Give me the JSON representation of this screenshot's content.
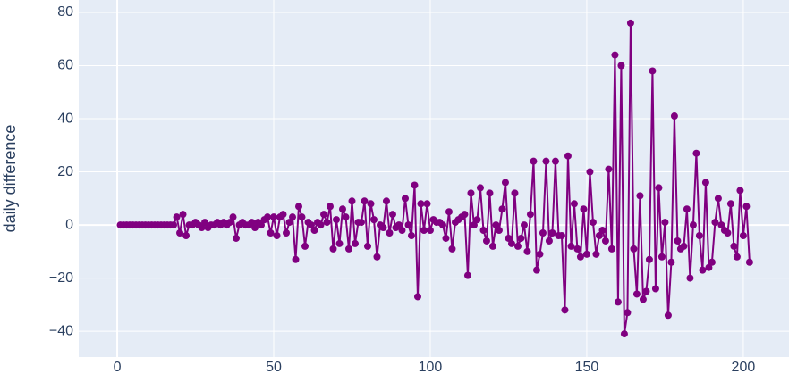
{
  "chart_data": {
    "type": "line",
    "y_label": "daily difference",
    "x": [
      1,
      2,
      3,
      4,
      5,
      6,
      7,
      8,
      9,
      10,
      11,
      12,
      13,
      14,
      15,
      16,
      17,
      18,
      19,
      20,
      21,
      22,
      23,
      24,
      25,
      26,
      27,
      28,
      29,
      30,
      31,
      32,
      33,
      34,
      35,
      36,
      37,
      38,
      39,
      40,
      41,
      42,
      43,
      44,
      45,
      46,
      47,
      48,
      49,
      50,
      51,
      52,
      53,
      54,
      55,
      56,
      57,
      58,
      59,
      60,
      61,
      62,
      63,
      64,
      65,
      66,
      67,
      68,
      69,
      70,
      71,
      72,
      73,
      74,
      75,
      76,
      77,
      78,
      79,
      80,
      81,
      82,
      83,
      84,
      85,
      86,
      87,
      88,
      89,
      90,
      91,
      92,
      93,
      94,
      95,
      96,
      97,
      98,
      99,
      100,
      101,
      102,
      103,
      104,
      105,
      106,
      107,
      108,
      109,
      110,
      111,
      112,
      113,
      114,
      115,
      116,
      117,
      118,
      119,
      120,
      121,
      122,
      123,
      124,
      125,
      126,
      127,
      128,
      129,
      130,
      131,
      132,
      133,
      134,
      135,
      136,
      137,
      138,
      139,
      140,
      141,
      142,
      143,
      144,
      145,
      146,
      147,
      148,
      149,
      150,
      151,
      152,
      153,
      154,
      155,
      156,
      157,
      158,
      159,
      160,
      161,
      162,
      163,
      164,
      165,
      166,
      167,
      168,
      169,
      170,
      171,
      172,
      173,
      174,
      175,
      176,
      177,
      178,
      179,
      180,
      181,
      182,
      183,
      184,
      185,
      186,
      187,
      188,
      189,
      190,
      191,
      192,
      193,
      194,
      195,
      196,
      197,
      198,
      199,
      200,
      201,
      202
    ],
    "series": [
      {
        "color": "#800080",
        "values": [
          0,
          0,
          0,
          0,
          0,
          0,
          0,
          0,
          0,
          0,
          0,
          0,
          0,
          0,
          0,
          0,
          0,
          0,
          3,
          -3,
          4,
          -4,
          0,
          0,
          1,
          0,
          -1,
          1,
          -1,
          0,
          0,
          1,
          0,
          1,
          0,
          1,
          3,
          -5,
          0,
          1,
          0,
          0,
          1,
          -1,
          1,
          0,
          2,
          3,
          -3,
          3,
          -4,
          3,
          4,
          -3,
          1,
          3,
          -13,
          7,
          3,
          -8,
          1,
          0,
          -2,
          1,
          0,
          4,
          1,
          7,
          -9,
          2,
          -7,
          6,
          3,
          -9,
          9,
          -7,
          1,
          1,
          9,
          -8,
          8,
          2,
          -12,
          0,
          -1,
          9,
          -3,
          4,
          -1,
          0,
          -2,
          10,
          0,
          -4,
          15,
          -27,
          8,
          -2,
          8,
          -2,
          2,
          1,
          1,
          0,
          -5,
          5,
          -9,
          1,
          2,
          3,
          4,
          -19,
          12,
          0,
          2,
          14,
          -2,
          -6,
          12,
          -8,
          0,
          -2,
          6,
          16,
          -5,
          -7,
          12,
          -8,
          -5,
          0,
          -10,
          4,
          24,
          -17,
          -11,
          -3,
          24,
          -6,
          -3,
          24,
          -4,
          -4,
          -32,
          26,
          -8,
          8,
          -9,
          -12,
          6,
          -11,
          20,
          1,
          -11,
          -4,
          -2,
          -6,
          21,
          -9,
          64,
          -29,
          60,
          -41,
          -33,
          76,
          -9,
          -26,
          11,
          -28,
          -25,
          -13,
          58,
          -24,
          14,
          -12,
          1,
          -34,
          -14,
          41,
          -6,
          -9,
          -8,
          6,
          -20,
          0,
          27,
          -4,
          -17,
          16,
          -16,
          -14,
          1,
          10,
          0,
          -2,
          -3,
          8,
          -8,
          -12,
          13,
          -4,
          7,
          -14
        ]
      }
    ],
    "xlim": [
      -12.3,
      214.6
    ],
    "ylim": [
      -49.7,
      84.7
    ],
    "xticks": [
      0,
      50,
      100,
      150,
      200
    ],
    "yticks": [
      {
        "value": -40,
        "label": "−40"
      },
      {
        "value": -20,
        "label": "−20"
      },
      0,
      20,
      40,
      60,
      80
    ],
    "grid": true,
    "background": "#e5ecf6"
  }
}
